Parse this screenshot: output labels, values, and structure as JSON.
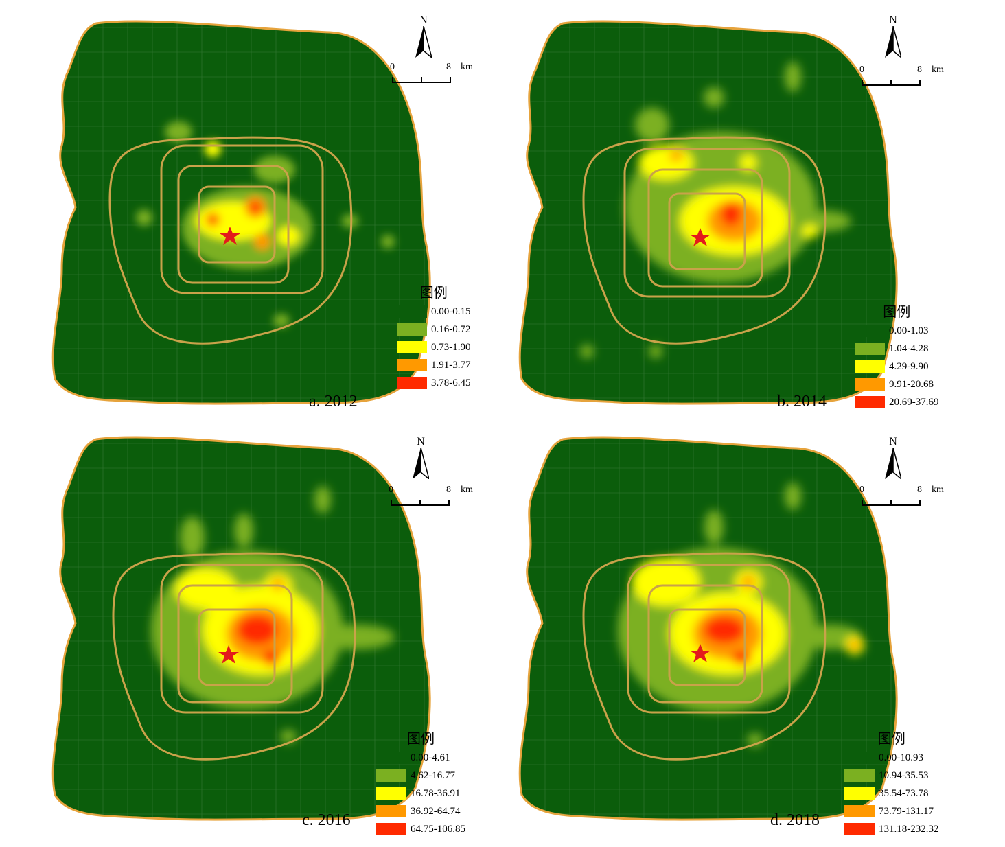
{
  "colors": {
    "class1": "#0b5d0b",
    "class2": "#7bb021",
    "class3": "#ffff00",
    "class4": "#ff9900",
    "class5": "#ff2a00",
    "border": "#e6a33c",
    "ring": "#c9a24a",
    "star": "#e31a1c"
  },
  "north_label": "N",
  "scale": {
    "zero": "0",
    "eight": "8",
    "unit": "km"
  },
  "legend_title": "图例",
  "panels": [
    {
      "caption": "a. 2012",
      "legend": [
        "0.00-0.15",
        "0.16-0.72",
        "0.73-1.90",
        "1.91-3.77",
        "3.78-6.45"
      ]
    },
    {
      "caption": "b. 2014",
      "legend": [
        "0.00-1.03",
        "1.04-4.28",
        "4.29-9.90",
        "9.91-20.68",
        "20.69-37.69"
      ]
    },
    {
      "caption": "c. 2016",
      "legend": [
        "0.00-4.61",
        "4.62-16.77",
        "16.78-36.91",
        "36.92-64.74",
        "64.75-106.85"
      ]
    },
    {
      "caption": "d. 2018",
      "legend": [
        "0.00-10.93",
        "10.94-35.53",
        "35.54-73.78",
        "73.79-131.17",
        "131.18-232.32"
      ]
    }
  ]
}
